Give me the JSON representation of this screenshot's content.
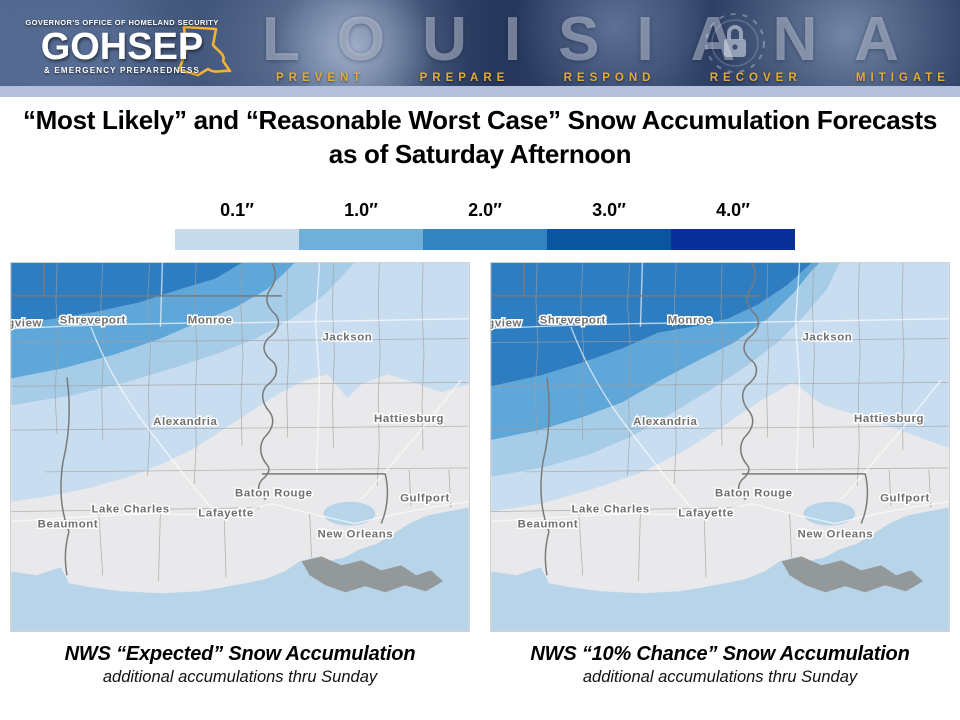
{
  "banner": {
    "org_top": "GOVERNOR'S OFFICE OF HOMELAND SECURITY",
    "org_acronym": "GOHSEP",
    "org_bottom": "& EMERGENCY PREPAREDNESS",
    "state_name": "LOUISIANA",
    "pillars": [
      "PREVENT",
      "PREPARE",
      "RESPOND",
      "RECOVER",
      "MITIGATE"
    ]
  },
  "title": {
    "line1": "“Most Likely” and “Reasonable Worst Case” Snow Accumulation Forecasts",
    "line2": "as of Saturday Afternoon"
  },
  "legend": {
    "labels": [
      "0.1″",
      "1.0″",
      "2.0″",
      "3.0″",
      "4.0″"
    ],
    "colors": [
      "#c6dbeb",
      "#6fafd8",
      "#3383c0",
      "#09569e",
      "#0b2f99"
    ]
  },
  "maps": [
    {
      "id": "expected",
      "caption": "NWS “Expected” Snow Accumulation",
      "subcaption": "additional accumulations thru Sunday"
    },
    {
      "id": "ten-percent",
      "caption": "NWS “10% Chance” Snow Accumulation",
      "subcaption": "additional accumulations thru Sunday"
    }
  ],
  "map_cities": [
    "gview",
    "Shreveport",
    "Monroe",
    "Jackson",
    "Alexandria",
    "Hattiesburg",
    "Baton Rouge",
    "Gulfport",
    "Lake Charles",
    "Lafayette",
    "Beaumont",
    "New Orleans"
  ],
  "map_colors": {
    "land": "#e9e9eb",
    "water": "#b7d4e8",
    "marsh": "#8d8d8d",
    "county_line": "#9f9f9f",
    "state_line": "#7a7a7a",
    "road": "#ffffff",
    "label": "#6f6f6f",
    "snow_light": "#c9ddf0",
    "snow_light_medium": "#a6cce8",
    "snow_medium": "#5fa6d9",
    "snow_dark": "#2f7dc1"
  }
}
